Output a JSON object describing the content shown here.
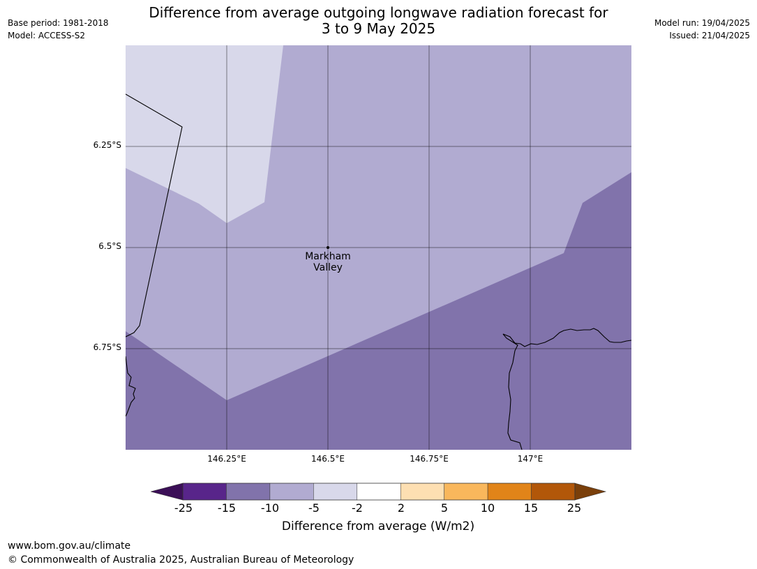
{
  "title": {
    "line1": "Difference from average outgoing longwave radiation forecast for",
    "line2": "3 to 9 May 2025"
  },
  "meta_left": {
    "base_period": "Base period: 1981-2018",
    "model": "Model: ACCESS-S2"
  },
  "meta_right": {
    "model_run": "Model run: 19/04/2025",
    "issued": "Issued: 21/04/2025"
  },
  "map": {
    "lat_labels": [
      "6.25°S",
      "6.5°S",
      "6.75°S"
    ],
    "lon_labels": [
      "146.25°E",
      "146.5°E",
      "146.75°E",
      "147°E"
    ],
    "place": {
      "name_line1": "Markham",
      "name_line2": "Valley"
    },
    "fill_colors": {
      "neg2_to_neg5": "#d8d8ea",
      "neg5_to_neg10": "#b1abd1",
      "neg10_to_neg15": "#8173ab"
    }
  },
  "colorbar": {
    "label": "Difference from average (W/m2)",
    "ticks": [
      "-25",
      "-15",
      "-10",
      "-5",
      "-2",
      "2",
      "5",
      "10",
      "15",
      "25"
    ],
    "under_color": "#3b0f57",
    "over_color": "#7a3f0a",
    "bins": [
      {
        "range": "-25 to -15",
        "color": "#58258a"
      },
      {
        "range": "-15 to -10",
        "color": "#8173ab"
      },
      {
        "range": "-10 to -5",
        "color": "#b1abd1"
      },
      {
        "range": "-5 to -2",
        "color": "#d8d8ea"
      },
      {
        "range": "-2 to 2",
        "color": "#ffffff"
      },
      {
        "range": "2 to 5",
        "color": "#fddfb2"
      },
      {
        "range": "5 to 10",
        "color": "#f9b75c"
      },
      {
        "range": "10 to 15",
        "color": "#e18419"
      },
      {
        "range": "15 to 25",
        "color": "#b25709"
      }
    ]
  },
  "footer": {
    "url": "www.bom.gov.au/climate",
    "copyright": "© Commonwealth of Australia 2025, Australian Bureau of Meteorology"
  }
}
